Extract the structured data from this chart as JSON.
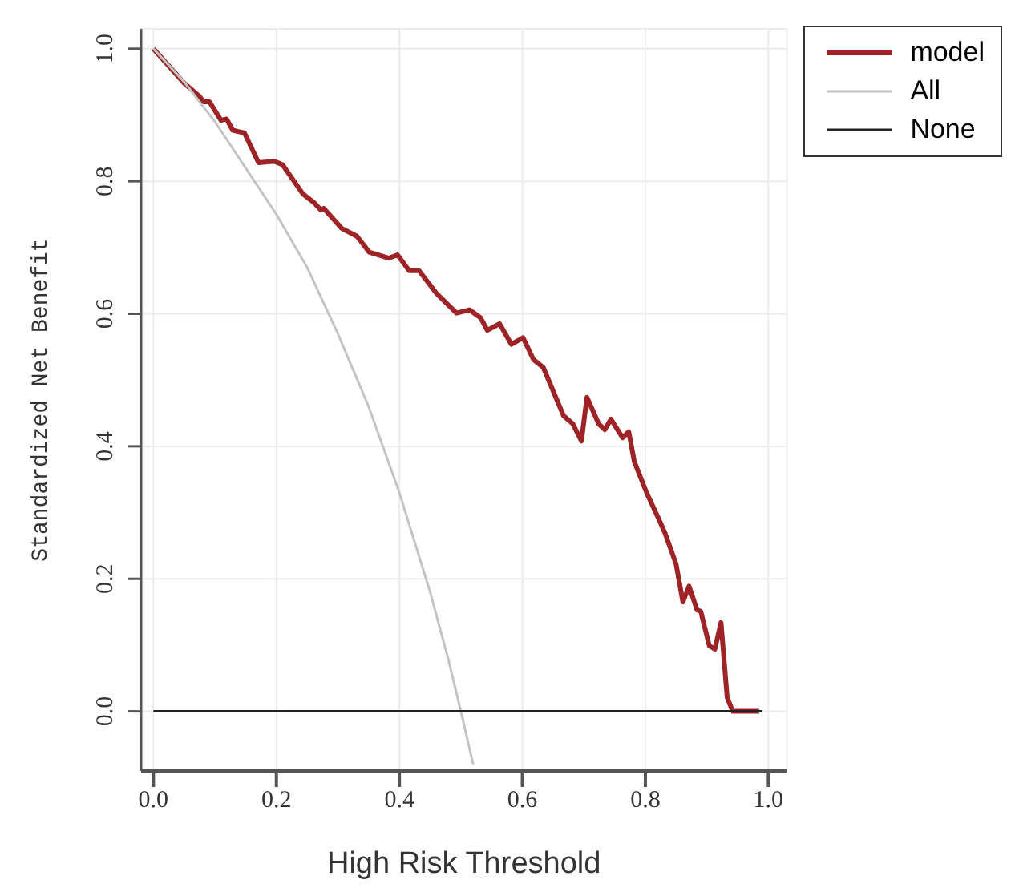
{
  "chart_data": {
    "type": "line",
    "xlabel": "High Risk Threshold",
    "ylabel": "Standardized Net Benefit",
    "xlim": [
      -0.02,
      1.03
    ],
    "ylim": [
      -0.09,
      1.03
    ],
    "xticks": [
      {
        "value": 0,
        "label": "0.0"
      },
      0.2,
      0.4,
      0.6,
      0.8,
      {
        "value": 1,
        "label": "1.0"
      }
    ],
    "yticks": [
      {
        "value": 0,
        "label": "0.0"
      },
      0.2,
      0.4,
      0.6,
      0.8,
      {
        "value": 1,
        "label": "1.0"
      }
    ],
    "grid": true,
    "legend": "top right",
    "marker": "none",
    "line_style": "solid",
    "series": [
      {
        "name": "model",
        "color": "#9e2326",
        "x": [
          0,
          0.05,
          0.075,
          0.081,
          0.091,
          0.11,
          0.119,
          0.129,
          0.148,
          0.171,
          0.197,
          0.21,
          0.243,
          0.262,
          0.272,
          0.277,
          0.306,
          0.331,
          0.351,
          0.383,
          0.397,
          0.416,
          0.432,
          0.461,
          0.493,
          0.514,
          0.532,
          0.543,
          0.563,
          0.582,
          0.601,
          0.618,
          0.634,
          0.667,
          0.682,
          0.696,
          0.705,
          0.724,
          0.734,
          0.744,
          0.763,
          0.773,
          0.782,
          0.802,
          0.821,
          0.832,
          0.85,
          0.861,
          0.871,
          0.884,
          0.89,
          0.904,
          0.913,
          0.923,
          0.933,
          0.942,
          0.985
        ],
        "values": [
          1.0,
          0.948,
          0.928,
          0.92,
          0.92,
          0.892,
          0.894,
          0.877,
          0.873,
          0.828,
          0.83,
          0.825,
          0.781,
          0.767,
          0.757,
          0.759,
          0.729,
          0.717,
          0.693,
          0.684,
          0.689,
          0.665,
          0.665,
          0.63,
          0.601,
          0.606,
          0.594,
          0.575,
          0.585,
          0.554,
          0.564,
          0.531,
          0.519,
          0.446,
          0.434,
          0.408,
          0.474,
          0.434,
          0.425,
          0.441,
          0.413,
          0.422,
          0.377,
          0.33,
          0.292,
          0.269,
          0.222,
          0.165,
          0.189,
          0.153,
          0.151,
          0.099,
          0.094,
          0.134,
          0.021,
          0,
          0
        ]
      },
      {
        "name": "All",
        "color": "#c4c4c4",
        "x": [
          0,
          0.05,
          0.1,
          0.15,
          0.2,
          0.25,
          0.3,
          0.35,
          0.4,
          0.45,
          0.48,
          0.5,
          0.52
        ],
        "values": [
          1.0,
          0.95,
          0.89,
          0.82,
          0.75,
          0.67,
          0.57,
          0.46,
          0.33,
          0.18,
          0.077,
          0.0,
          -0.08
        ]
      },
      {
        "name": "None",
        "color": "#222222",
        "x": [
          0,
          0.99
        ],
        "values": [
          0,
          0
        ]
      }
    ]
  }
}
